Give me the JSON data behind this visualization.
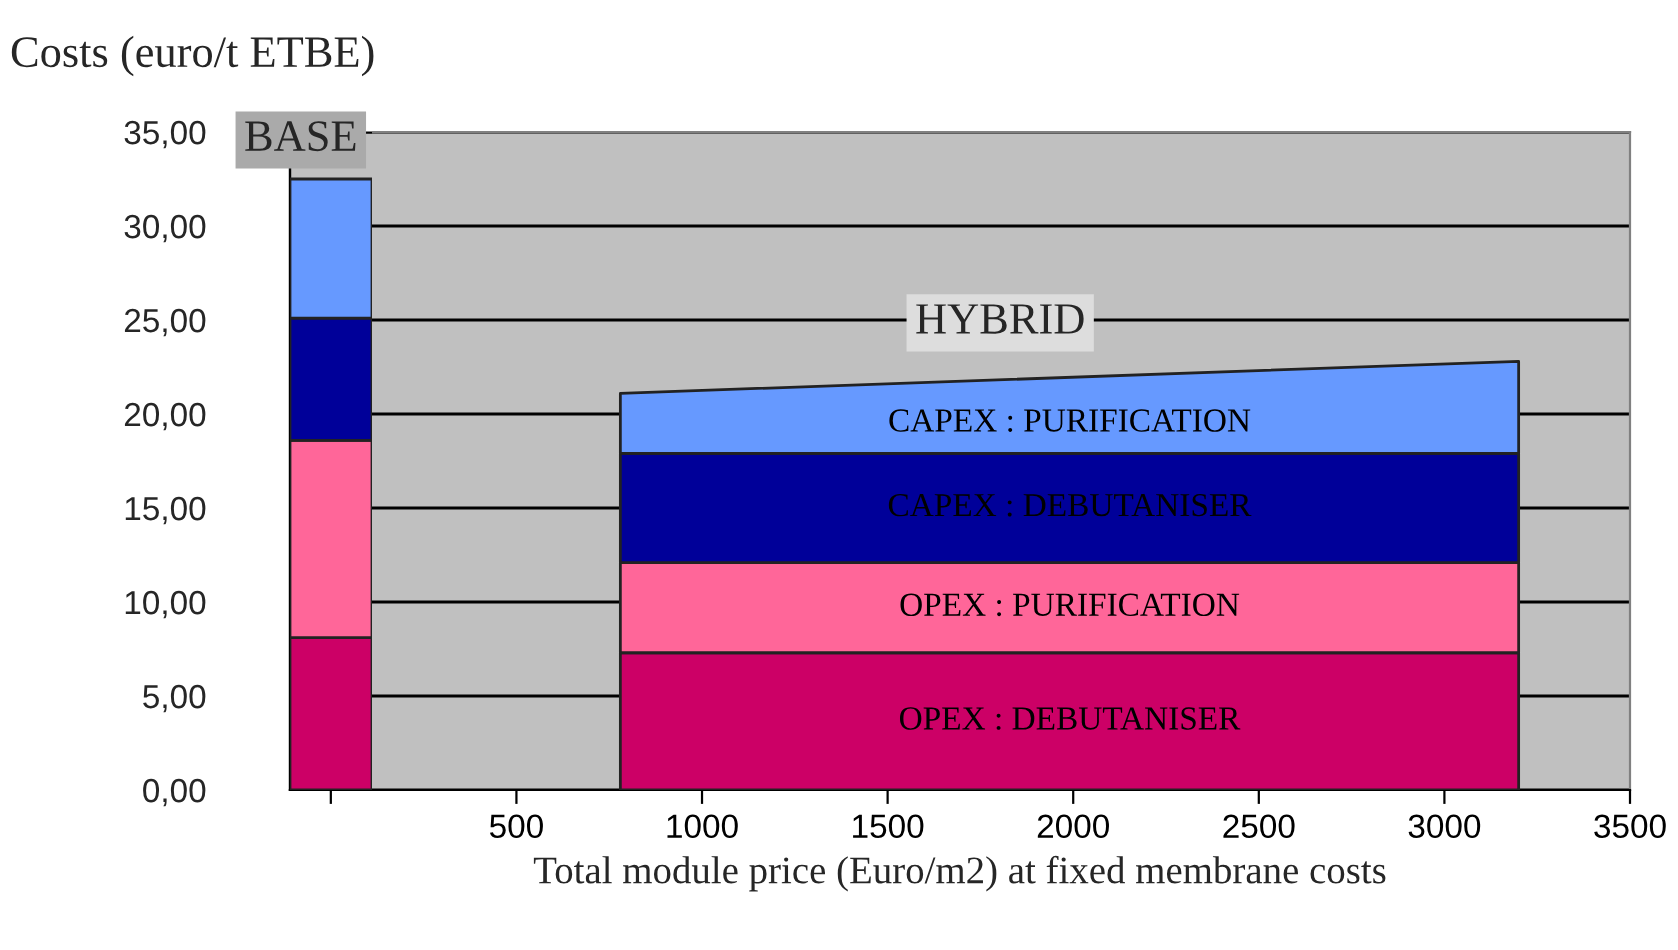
{
  "chart_data": [
    {
      "type": "bar",
      "stacked": true,
      "categories": [
        null
      ],
      "ylabel": "Costs (euro/t ETBE)",
      "annotations": [
        "BASE"
      ],
      "series": [
        {
          "color": "#cc0066",
          "values": [
            8.1
          ]
        },
        {
          "color": "#ff6699",
          "values": [
            10.5
          ]
        },
        {
          "color": "#000099",
          "values": [
            6.5
          ]
        },
        {
          "color": "#6699ff",
          "values": [
            7.4
          ]
        }
      ],
      "ylim": [
        0,
        35
      ],
      "yticks": [
        {
          "value": 0,
          "label": "0,00"
        },
        {
          "value": 5,
          "label": "5,00"
        },
        {
          "value": 10,
          "label": "10,00"
        },
        {
          "value": 15,
          "label": "15,00"
        },
        {
          "value": 20,
          "label": "20,00"
        },
        {
          "value": 25,
          "label": "25,00"
        },
        {
          "value": 30,
          "label": "30,00"
        },
        {
          "value": 35,
          "label": "35,00"
        }
      ],
      "grid": "y",
      "tick_labels": "y"
    },
    {
      "type": "area",
      "stacked": true,
      "xlabel": "Total module price (Euro/m2) at fixed membrane costs",
      "annotations": [
        "HYBRID"
      ],
      "x": [
        780,
        3200
      ],
      "series": [
        {
          "name": "OPEX : DEBUTANISER",
          "color": "#cc0066",
          "values": [
            7.3,
            7.3
          ]
        },
        {
          "name": "OPEX : PURIFICATION",
          "color": "#ff6699",
          "values": [
            4.8,
            4.8
          ]
        },
        {
          "name": "CAPEX : DEBUTANISER",
          "color": "#000099",
          "values": [
            5.8,
            5.8
          ]
        },
        {
          "name": "CAPEX : PURIFICATION",
          "color": "#6699ff",
          "values": [
            3.2,
            4.9
          ]
        }
      ],
      "xlim": [
        -110,
        3500
      ],
      "xticks": [
        {
          "value": 0,
          "label": null
        },
        500,
        1000,
        1500,
        2000,
        2500,
        3000,
        3500
      ],
      "ylim": [
        0,
        35
      ],
      "yticks": [
        0,
        5,
        10,
        15,
        20,
        25,
        30,
        35
      ],
      "grid": "y",
      "tick_labels": "x"
    }
  ]
}
